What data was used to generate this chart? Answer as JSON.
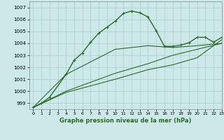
{
  "xlabel": "Graphe pression niveau de la mer (hPa)",
  "ylim": [
    998.5,
    1007.5
  ],
  "xlim": [
    -0.5,
    23
  ],
  "yticks": [
    999,
    1000,
    1001,
    1002,
    1003,
    1004,
    1005,
    1006,
    1007
  ],
  "xticks": [
    0,
    1,
    2,
    3,
    4,
    5,
    6,
    7,
    8,
    9,
    10,
    11,
    12,
    13,
    14,
    15,
    16,
    17,
    18,
    19,
    20,
    21,
    22,
    23
  ],
  "bg_color": "#cce8e8",
  "grid_color": "#aacece",
  "line_color": "#2d6a2d",
  "series": [
    {
      "x": [
        0,
        1,
        2,
        4,
        5,
        6,
        7,
        8,
        9,
        10,
        11,
        12,
        13,
        14,
        15,
        16,
        17,
        18,
        19,
        20,
        21,
        22,
        23
      ],
      "y": [
        998.65,
        999.0,
        999.5,
        1001.4,
        1002.6,
        1003.2,
        1004.1,
        1004.85,
        1005.35,
        1005.85,
        1006.5,
        1006.7,
        1006.55,
        1006.2,
        1005.05,
        1003.75,
        1003.75,
        1003.85,
        1004.05,
        1004.5,
        1004.5,
        1004.1,
        1004.5
      ],
      "marker": "+",
      "markersize": 3.5,
      "linewidth": 1.0
    },
    {
      "x": [
        0,
        4,
        10,
        14,
        17,
        20,
        23
      ],
      "y": [
        998.65,
        1001.4,
        1003.5,
        1003.8,
        1003.65,
        1003.8,
        1004.0
      ],
      "marker": null,
      "linewidth": 0.8
    },
    {
      "x": [
        0,
        4,
        10,
        14,
        17,
        20,
        23
      ],
      "y": [
        998.65,
        1000.0,
        1001.5,
        1002.3,
        1003.0,
        1003.5,
        1004.0
      ],
      "marker": null,
      "linewidth": 0.8
    },
    {
      "x": [
        0,
        4,
        10,
        14,
        17,
        20,
        23
      ],
      "y": [
        998.65,
        999.9,
        1001.0,
        1001.8,
        1002.2,
        1002.8,
        1004.3
      ],
      "marker": null,
      "linewidth": 0.8
    }
  ]
}
